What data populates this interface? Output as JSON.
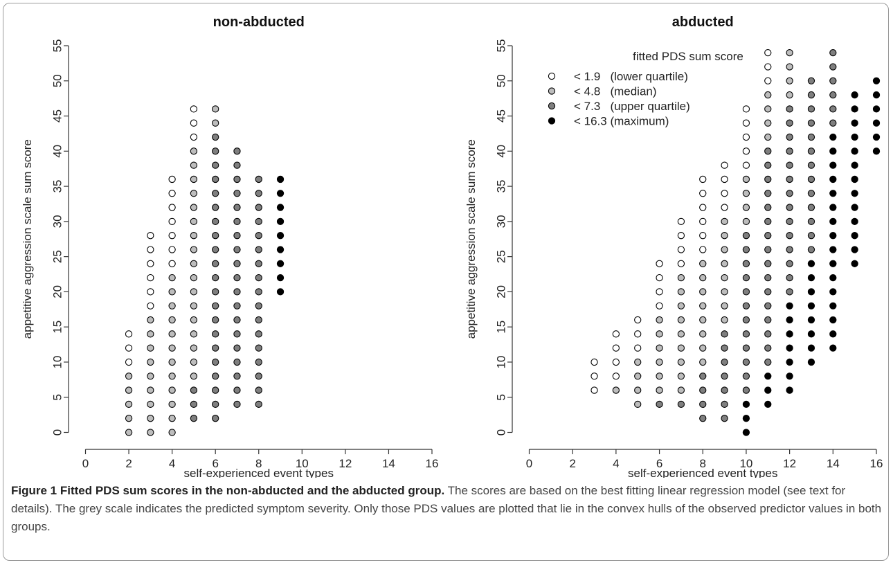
{
  "chart_data": [
    {
      "type": "scatter",
      "title": "non-abducted",
      "xlabel": "self-experienced event types",
      "ylabel": "appetitive aggression scale sum score",
      "xlim": [
        0,
        16
      ],
      "ylim": [
        0,
        55
      ],
      "x_ticks": [
        0,
        2,
        4,
        6,
        8,
        10,
        12,
        14,
        16
      ],
      "y_ticks": [
        0,
        5,
        10,
        15,
        20,
        25,
        30,
        35,
        40,
        45,
        50,
        55
      ],
      "grid": false,
      "legend": null,
      "fill_colors": {
        "1": "#ffffff",
        "2": "#bdbdbd",
        "3": "#7f7f7f",
        "4": "#000000"
      },
      "columns": [
        {
          "x": 2,
          "classes": "22222111"
        },
        {
          "x": 3,
          "classes": "222222222111111"
        },
        {
          "x": 4,
          "classes": "2222222222221111111"
        },
        {
          "x": 5,
          "classes": "33322222222222222222111"
        },
        {
          "x": 6,
          "classes": "33333333333333333333322"
        },
        {
          "x": 7,
          "classes": "3333333333333333333"
        },
        {
          "x": 8,
          "classes": "33333333333333333"
        },
        {
          "x": 9,
          "classes": "444444444"
        }
      ],
      "column_y_start": {
        "2": 0,
        "3": 0,
        "4": 0,
        "5": 2,
        "6": 2,
        "7": 4,
        "8": 4,
        "9": 20
      }
    },
    {
      "type": "scatter",
      "title": "abducted",
      "xlabel": "self-experienced event types",
      "ylabel": "appetitive aggression scale sum score",
      "xlim": [
        0,
        16
      ],
      "ylim": [
        0,
        55
      ],
      "x_ticks": [
        0,
        2,
        4,
        6,
        8,
        10,
        12,
        14,
        16
      ],
      "y_ticks": [
        0,
        5,
        10,
        15,
        20,
        25,
        30,
        35,
        40,
        45,
        50,
        55
      ],
      "grid": false,
      "legend": {
        "position": "top-left",
        "title": "fitted PDS sum score",
        "items": [
          {
            "class": 1,
            "label": "< 1.9   (lower quartile)"
          },
          {
            "class": 2,
            "label": "< 4.8   (median)"
          },
          {
            "class": 3,
            "label": "< 7.3   (upper quartile)"
          },
          {
            "class": 4,
            "label": "< 16.3 (maximum)"
          }
        ]
      },
      "fill_colors": {
        "1": "#ffffff",
        "2": "#bdbdbd",
        "3": "#7f7f7f",
        "4": "#000000"
      },
      "columns": [
        {
          "x": 3,
          "classes": "111"
        },
        {
          "x": 4,
          "classes": "21111"
        },
        {
          "x": 5,
          "classes": "2222111"
        },
        {
          "x": 6,
          "classes": "32222221111"
        },
        {
          "x": 7,
          "classes": "32222222221111"
        },
        {
          "x": 8,
          "classes": "333322222222111111"
        },
        {
          "x": 9,
          "classes": "3333333222222221111"
        },
        {
          "x": 10,
          "classes": "444333333333333222211111"
        },
        {
          "x": 11,
          "classes": "44433333333333333332222111"
        },
        {
          "x": 12,
          "classes": "4444444333333333333332222"
        },
        {
          "x": 13,
          "classes": "444444443333333333333"
        },
        {
          "x": 14,
          "classes": "4444444444444444333333"
        },
        {
          "x": 15,
          "classes": "4444444444444"
        },
        {
          "x": 16,
          "classes": "444444"
        }
      ],
      "column_y_start": {
        "3": 6,
        "4": 6,
        "5": 4,
        "6": 4,
        "7": 4,
        "8": 2,
        "9": 2,
        "10": 0,
        "11": 4,
        "12": 6,
        "13": 10,
        "14": 12,
        "15": 24,
        "16": 40
      }
    }
  ],
  "caption": {
    "bold": "Figure 1 Fitted PDS sum scores in the non-abducted and the abducted group.",
    "text": " The scores are based on the best fitting linear regression model (see text for details). The grey scale indicates the predicted symptom severity. Only those PDS values are plotted that lie in the convex hulls of the observed predictor values in both groups."
  }
}
